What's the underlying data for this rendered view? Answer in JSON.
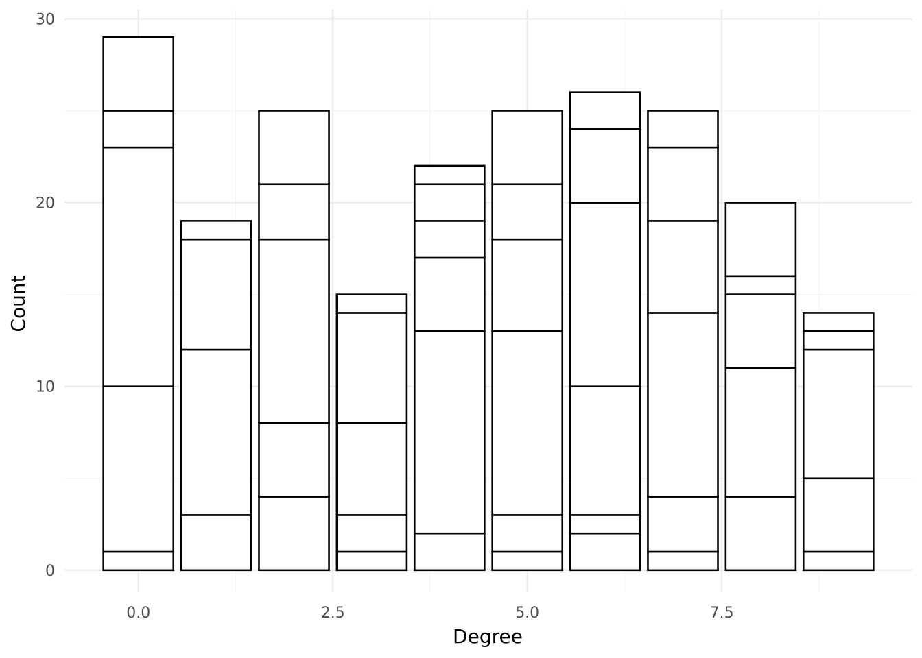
{
  "chart_data": {
    "type": "bar",
    "stacked": true,
    "title": "",
    "xlabel": "Degree",
    "ylabel": "Count",
    "xlim": [
      -0.95,
      9.95
    ],
    "ylim": [
      -1.2,
      30.5
    ],
    "x_ticks": [
      0.0,
      2.5,
      5.0,
      7.5
    ],
    "x_tick_labels": [
      "0.0",
      "2.5",
      "5.0",
      "7.5"
    ],
    "x_minor_ticks": [
      1.25,
      3.75,
      6.25,
      8.75
    ],
    "y_ticks": [
      0,
      10,
      20,
      30
    ],
    "y_tick_labels": [
      "0",
      "10",
      "20",
      "30"
    ],
    "y_minor_ticks": [
      5,
      15,
      25
    ],
    "grid": true,
    "legend": "none",
    "bar_fill": "#ffffff",
    "bar_outline": "#000000",
    "bar_width": 0.9,
    "categories": [
      0,
      1,
      2,
      3,
      4,
      5,
      6,
      7,
      8,
      9
    ],
    "totals": [
      29,
      19,
      25,
      15,
      22,
      25,
      26,
      25,
      20,
      14
    ],
    "segment_boundaries": [
      [
        0,
        1,
        10,
        23,
        25,
        29
      ],
      [
        0,
        3,
        12,
        18,
        19
      ],
      [
        0,
        4,
        8,
        18,
        21,
        25
      ],
      [
        0,
        1,
        3,
        8,
        14,
        15
      ],
      [
        0,
        2,
        13,
        17,
        19,
        21,
        22
      ],
      [
        0,
        1,
        3,
        13,
        18,
        21,
        25
      ],
      [
        0,
        2,
        3,
        10,
        20,
        24,
        26
      ],
      [
        0,
        1,
        4,
        14,
        19,
        23,
        25
      ],
      [
        0,
        4,
        11,
        15,
        16,
        20
      ],
      [
        0,
        1,
        5,
        12,
        13,
        14
      ]
    ]
  }
}
